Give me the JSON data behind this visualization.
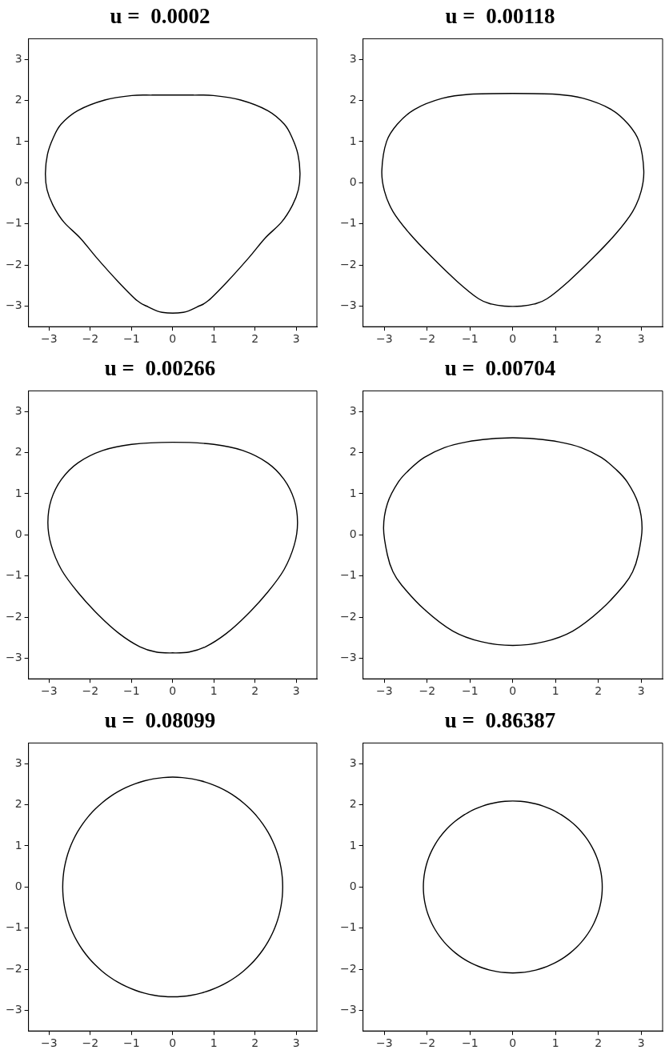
{
  "chart_data": [
    {
      "type": "line",
      "title": "u =  0.0002",
      "xlim": [
        -3.5,
        3.5
      ],
      "ylim": [
        -3.5,
        3.5
      ],
      "xticks": [
        -3,
        -2,
        -1,
        0,
        1,
        2,
        3
      ],
      "yticks": [
        -3,
        -2,
        -1,
        0,
        1,
        2,
        3
      ],
      "grid": false,
      "legend": false
    },
    {
      "type": "line",
      "title": "u =  0.00118",
      "xlim": [
        -3.5,
        3.5
      ],
      "ylim": [
        -3.5,
        3.5
      ],
      "xticks": [
        -3,
        -2,
        -1,
        0,
        1,
        2,
        3
      ],
      "yticks": [
        -3,
        -2,
        -1,
        0,
        1,
        2,
        3
      ],
      "grid": false,
      "legend": false
    },
    {
      "type": "line",
      "title": "u =  0.00266",
      "xlim": [
        -3.5,
        3.5
      ],
      "ylim": [
        -3.5,
        3.5
      ],
      "xticks": [
        -3,
        -2,
        -1,
        0,
        1,
        2,
        3
      ],
      "yticks": [
        -3,
        -2,
        -1,
        0,
        1,
        2,
        3
      ],
      "grid": false,
      "legend": false
    },
    {
      "type": "line",
      "title": "u =  0.00704",
      "xlim": [
        -3.5,
        3.5
      ],
      "ylim": [
        -3.5,
        3.5
      ],
      "xticks": [
        -3,
        -2,
        -1,
        0,
        1,
        2,
        3
      ],
      "yticks": [
        -3,
        -2,
        -1,
        0,
        1,
        2,
        3
      ],
      "grid": false,
      "legend": false
    },
    {
      "type": "line",
      "title": "u =  0.08099",
      "xlim": [
        -3.5,
        3.5
      ],
      "ylim": [
        -3.5,
        3.5
      ],
      "xticks": [
        -3,
        -2,
        -1,
        0,
        1,
        2,
        3
      ],
      "yticks": [
        -3,
        -2,
        -1,
        0,
        1,
        2,
        3
      ],
      "grid": false,
      "legend": false
    },
    {
      "type": "line",
      "title": "u =  0.86387",
      "xlim": [
        -3.5,
        3.5
      ],
      "ylim": [
        -3.5,
        3.5
      ],
      "xticks": [
        -3,
        -2,
        -1,
        0,
        1,
        2,
        3
      ],
      "yticks": [
        -3,
        -2,
        -1,
        0,
        1,
        2,
        3
      ],
      "grid": false,
      "legend": false
    }
  ]
}
